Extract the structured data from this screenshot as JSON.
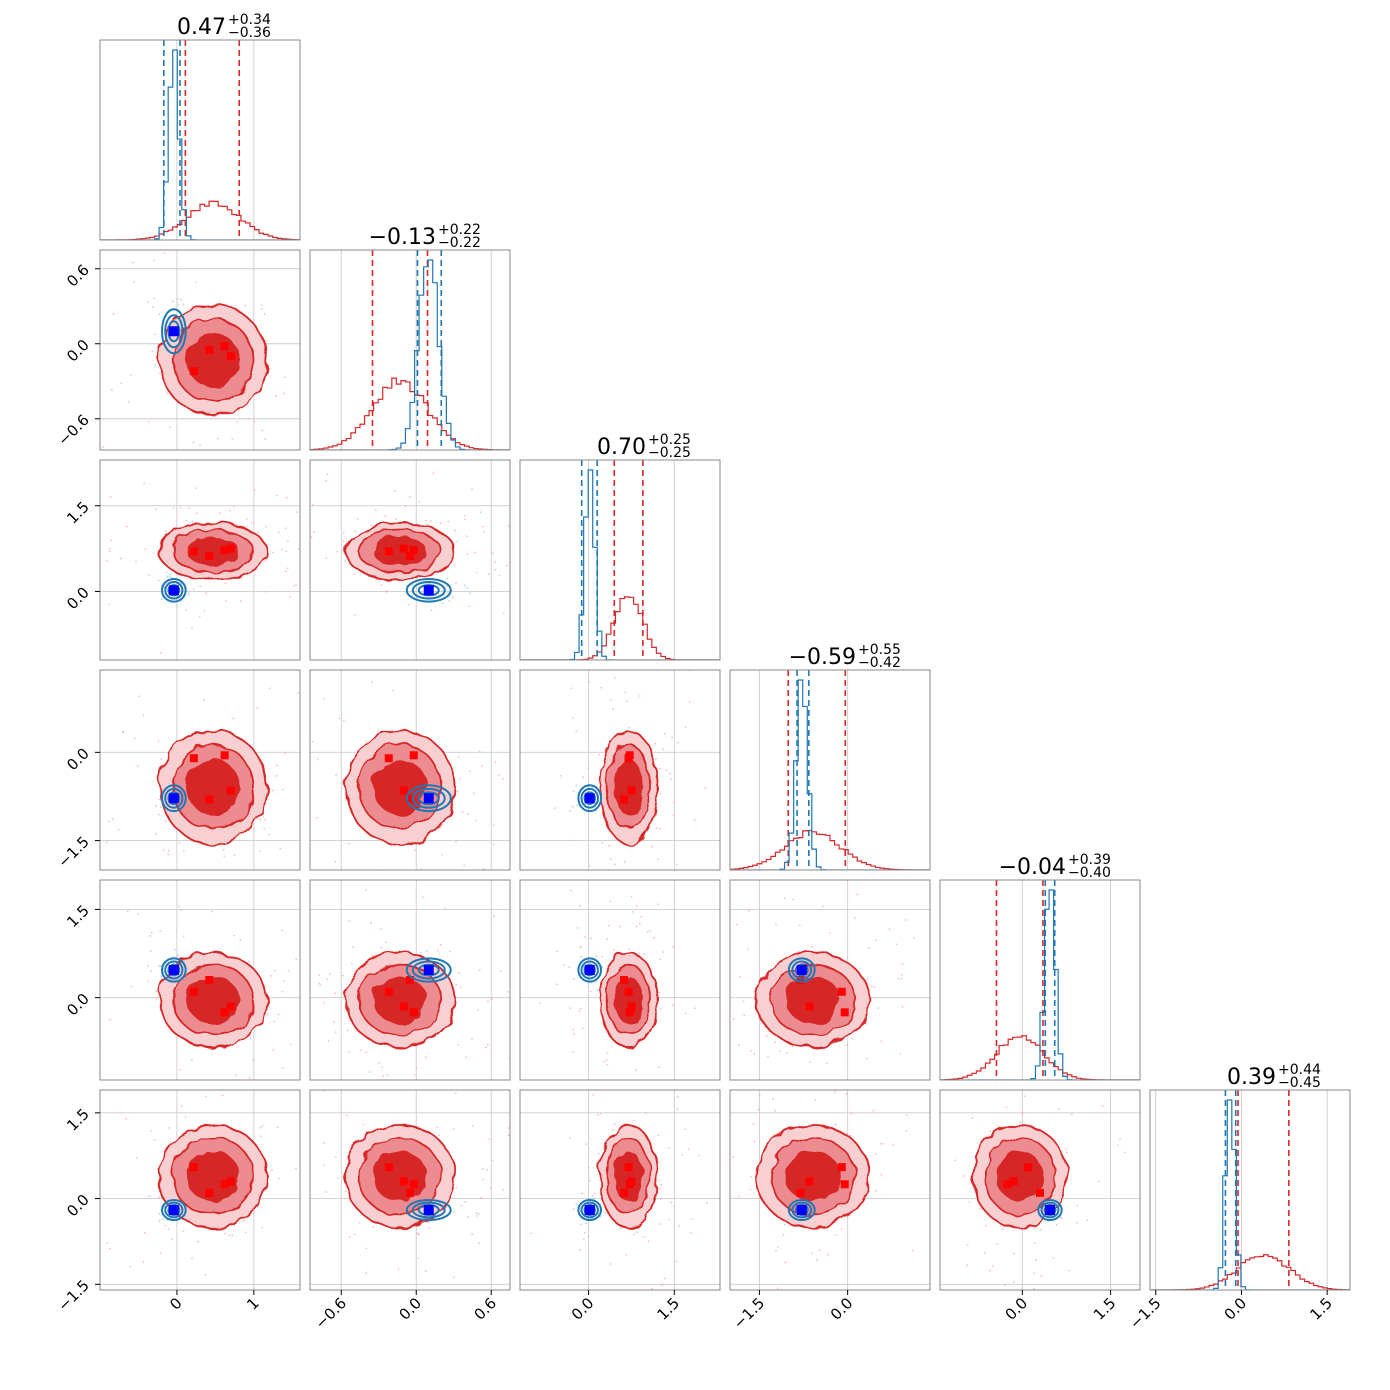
{
  "figure": {
    "type": "corner-plot",
    "n_params": 6
  },
  "colors": {
    "red": "#d62728",
    "red_mid": "#ec8c91",
    "red_light": "#f8d0d2",
    "blue": "#1f77b4",
    "blue_light": "#9fc8e8",
    "marker_blue": "#0000ff",
    "marker_red": "#ff0000"
  },
  "titles": [
    {
      "value": "0.47",
      "plus": "+0.34",
      "minus": "−0.36"
    },
    {
      "value": "−0.13",
      "plus": "+0.22",
      "minus": "−0.22"
    },
    {
      "value": "0.70",
      "plus": "+0.25",
      "minus": "−0.25"
    },
    {
      "value": "−0.59",
      "plus": "+0.55",
      "minus": "−0.42"
    },
    {
      "value": "−0.04",
      "plus": "+0.39",
      "minus": "−0.40"
    },
    {
      "value": "0.39",
      "plus": "+0.44",
      "minus": "−0.45"
    }
  ],
  "chart_data": {
    "type": "corner",
    "params": [
      {
        "range": [
          -1.0,
          1.6
        ],
        "ticks": [
          0,
          1
        ],
        "tick_labels": [
          "0",
          "1"
        ]
      },
      {
        "range": [
          -0.85,
          0.75
        ],
        "ticks": [
          -0.6,
          0,
          0.6
        ],
        "tick_labels": [
          "−0.6",
          "0.0",
          "0.6"
        ]
      },
      {
        "range": [
          -1.2,
          2.3
        ],
        "ticks": [
          0,
          1.5
        ],
        "tick_labels": [
          "0.0",
          "1.5"
        ]
      },
      {
        "range": [
          -2.0,
          1.4
        ],
        "ticks": [
          -1.5,
          0
        ],
        "tick_labels": [
          "−1.5",
          "0.0"
        ]
      },
      {
        "range": [
          -1.4,
          2.0
        ],
        "ticks": [
          0,
          1.5
        ],
        "tick_labels": [
          "0.0",
          "1.5"
        ]
      },
      {
        "range": [
          -1.6,
          1.9
        ],
        "ticks": [
          -1.5,
          0,
          1.5
        ],
        "tick_labels": [
          "−1.5",
          "0.0",
          "1.5"
        ]
      }
    ],
    "datasets": [
      {
        "name": "",
        "color": "#d62728",
        "mean": [
          0.47,
          -0.13,
          0.7,
          -0.59,
          -0.04,
          0.39
        ],
        "sigma": [
          0.35,
          0.22,
          0.25,
          0.48,
          0.4,
          0.45
        ],
        "quantile_lines": [
          [
            0.11,
            0.81
          ],
          [
            -0.35,
            0.09
          ],
          [
            0.45,
            0.95
          ],
          [
            -1.01,
            -0.04
          ],
          [
            -0.44,
            0.35
          ],
          [
            -0.06,
            0.83
          ]
        ],
        "markers": [
          [
            0.22,
            -0.22,
            0.7,
            -0.1,
            0.1,
            0.55
          ],
          [
            0.42,
            -0.05,
            0.62,
            -0.8,
            0.3,
            0.1
          ],
          [
            0.62,
            -0.02,
            0.72,
            -0.05,
            -0.25,
            0.25
          ],
          [
            0.7,
            -0.1,
            0.75,
            -0.65,
            -0.15,
            0.3
          ]
        ]
      },
      {
        "name": "",
        "color": "#1f77b4",
        "mean": [
          -0.04,
          0.1,
          0.02,
          -0.78,
          0.47,
          -0.2
        ],
        "sigma": [
          0.07,
          0.08,
          0.09,
          0.1,
          0.09,
          0.08
        ],
        "quantile_lines": [
          [
            -0.17,
            0.04
          ],
          [
            0.01,
            0.2
          ],
          [
            -0.12,
            0.15
          ],
          [
            -0.86,
            -0.66
          ],
          [
            0.39,
            0.55
          ],
          [
            -0.28,
            -0.1
          ]
        ],
        "truth": [
          -0.04,
          0.1,
          0.02,
          -0.78,
          0.47,
          -0.2
        ]
      }
    ]
  }
}
